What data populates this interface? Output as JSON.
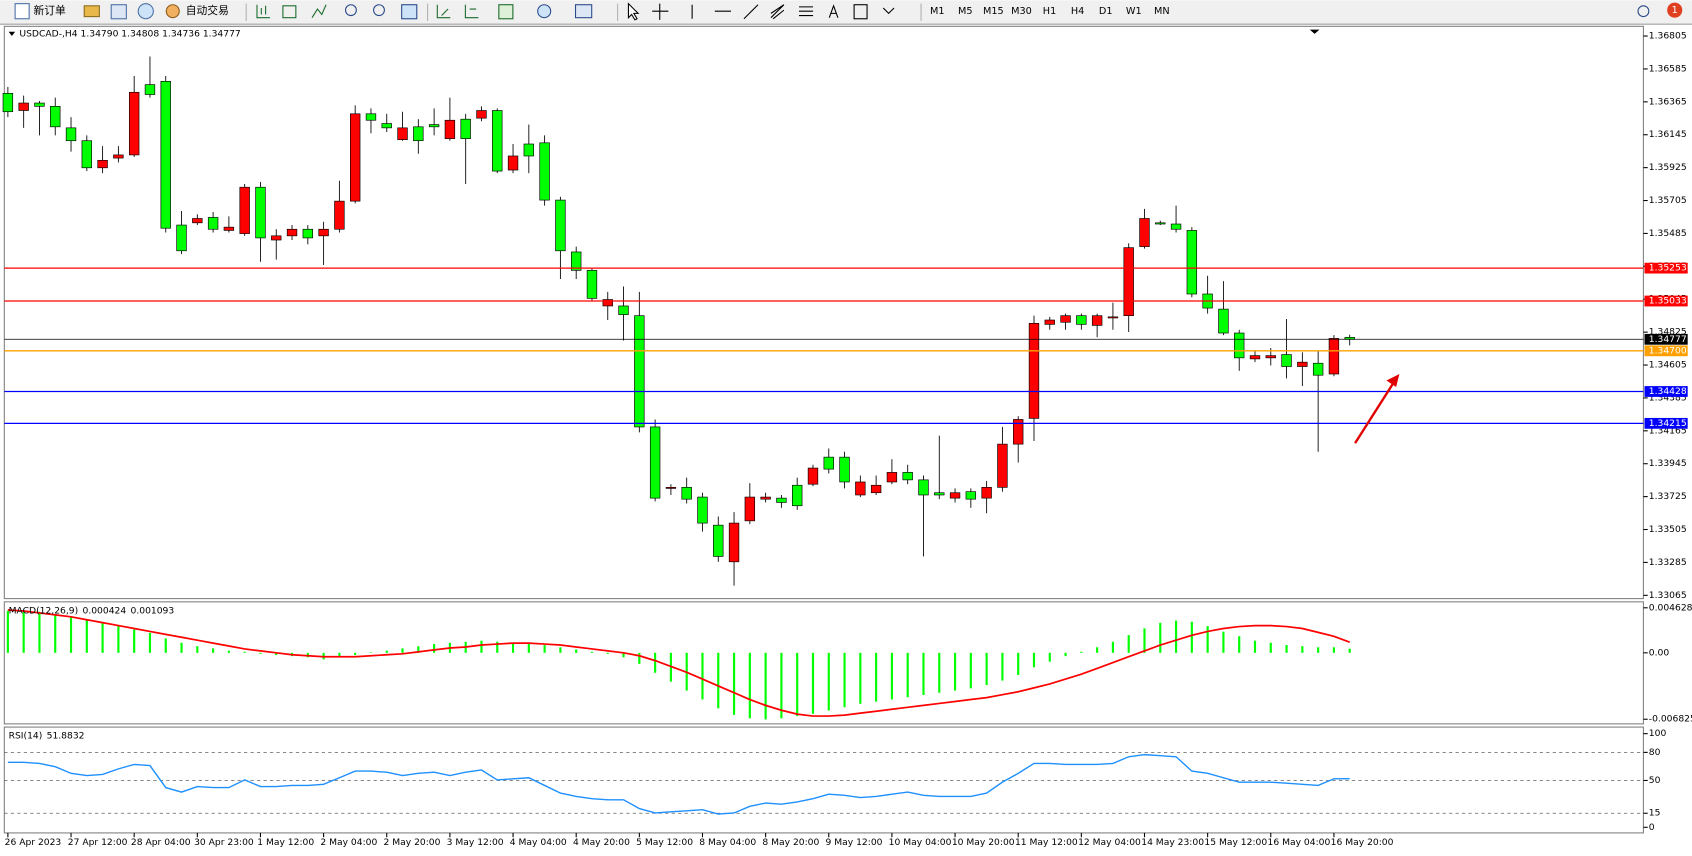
{
  "toolbar": {
    "new_order": "新订单",
    "auto_trade": "自动交易",
    "timeframes": [
      "M1",
      "M5",
      "M15",
      "M30",
      "H1",
      "H4",
      "D1",
      "W1",
      "MN"
    ],
    "notifications": "1"
  },
  "chart_data": [
    {
      "type": "candlestick",
      "subtitle": "USDCAD-,H4  1.34790 1.34808 1.34736 1.34777",
      "up_color": "#ff0000",
      "down_color": "#00ff00",
      "categories": [
        "26 Apr 2023",
        null,
        null,
        null,
        "27 Apr 12:00",
        null,
        null,
        null,
        "28 Apr 04:00",
        null,
        null,
        null,
        "30 Apr 23:00",
        null,
        null,
        null,
        "1 May 12:00",
        null,
        null,
        null,
        "2 May 04:00",
        null,
        null,
        null,
        "2 May 20:00",
        null,
        null,
        null,
        "3 May 12:00",
        null,
        null,
        null,
        "4 May 04:00",
        null,
        null,
        null,
        "4 May 20:00",
        null,
        null,
        null,
        "5 May 12:00",
        null,
        null,
        null,
        "8 May 04:00",
        null,
        null,
        null,
        "8 May 20:00",
        null,
        null,
        null,
        "9 May 12:00",
        null,
        null,
        null,
        "10 May 04:00",
        null,
        null,
        null,
        "10 May 20:00",
        null,
        null,
        null,
        "11 May 12:00",
        null,
        null,
        null,
        "12 May 04:00",
        null,
        null,
        null,
        "14 May 23:00",
        null,
        null,
        null,
        "15 May 12:00",
        null,
        null,
        null,
        "16 May 04:00",
        null,
        null,
        null,
        "16 May 20:00",
        null
      ],
      "ohlc": [
        [
          1.36422,
          1.36465,
          1.36263,
          1.36299
        ],
        [
          1.36307,
          1.36407,
          1.36191,
          1.36357
        ],
        [
          1.36357,
          1.36371,
          1.36141,
          1.36335
        ],
        [
          1.36335,
          1.36393,
          1.36141,
          1.36198
        ],
        [
          1.36191,
          1.36263,
          1.36032,
          1.36105
        ],
        [
          1.36105,
          1.36141,
          1.35902,
          1.35924
        ],
        [
          1.35924,
          1.36069,
          1.35888,
          1.35974
        ],
        [
          1.35989,
          1.36069,
          1.3596,
          1.3601
        ],
        [
          1.3601,
          1.36538,
          1.35996,
          1.36429
        ],
        [
          1.3648,
          1.36668,
          1.36393,
          1.36414
        ],
        [
          1.36502,
          1.36538,
          1.35491,
          1.3552
        ],
        [
          1.35541,
          1.35635,
          1.35347,
          1.35369
        ],
        [
          1.35556,
          1.35613,
          1.35541,
          1.35585
        ],
        [
          1.35592,
          1.35628,
          1.35491,
          1.35513
        ],
        [
          1.35505,
          1.35599,
          1.35491,
          1.35527
        ],
        [
          1.35484,
          1.35816,
          1.35469,
          1.35794
        ],
        [
          1.35794,
          1.3583,
          1.35296,
          1.35455
        ],
        [
          1.35441,
          1.35513,
          1.3531,
          1.35469
        ],
        [
          1.35469,
          1.35541,
          1.35441,
          1.35513
        ],
        [
          1.35513,
          1.35541,
          1.35412,
          1.35455
        ],
        [
          1.35469,
          1.35563,
          1.35274,
          1.35513
        ],
        [
          1.35513,
          1.35837,
          1.35491,
          1.35701
        ],
        [
          1.35701,
          1.36342,
          1.35686,
          1.36285
        ],
        [
          1.36285,
          1.36321,
          1.36155,
          1.36242
        ],
        [
          1.3622,
          1.36285,
          1.36163,
          1.36191
        ],
        [
          1.36112,
          1.36299,
          1.36105,
          1.36191
        ],
        [
          1.36198,
          1.36249,
          1.36018,
          1.36105
        ],
        [
          1.36213,
          1.36321,
          1.36141,
          1.36198
        ],
        [
          1.36119,
          1.36393,
          1.36105,
          1.36242
        ],
        [
          1.36249,
          1.36285,
          1.35816,
          1.36119
        ],
        [
          1.36256,
          1.36335,
          1.36235,
          1.36307
        ],
        [
          1.36307,
          1.36321,
          1.35888,
          1.35902
        ],
        [
          1.35909,
          1.36083,
          1.35888,
          1.36003
        ],
        [
          1.36083,
          1.36213,
          1.35888,
          1.36003
        ],
        [
          1.36091,
          1.36141,
          1.35671,
          1.35708
        ],
        [
          1.35708,
          1.3573,
          1.3518,
          1.35369
        ],
        [
          1.35361,
          1.35397,
          1.3518,
          1.35238
        ],
        [
          1.35238,
          1.35252,
          1.35036,
          1.35051
        ],
        [
          1.35,
          1.35094,
          1.34906,
          1.35043
        ],
        [
          1.35,
          1.3513,
          1.34769,
          1.34942
        ],
        [
          1.34935,
          1.35094,
          1.34155,
          1.34191
        ],
        [
          1.34191,
          1.34241,
          1.33693,
          1.33715
        ],
        [
          1.3378,
          1.33808,
          1.33736,
          1.33787
        ],
        [
          1.33787,
          1.33852,
          1.33679,
          1.33708
        ],
        [
          1.33722,
          1.33751,
          1.33491,
          1.33548
        ],
        [
          1.33534,
          1.33592,
          1.33289,
          1.33325
        ],
        [
          1.33289,
          1.33621,
          1.3313,
          1.33548
        ],
        [
          1.33563,
          1.33815,
          1.33541,
          1.33722
        ],
        [
          1.33708,
          1.33751,
          1.33686,
          1.33722
        ],
        [
          1.33715,
          1.33736,
          1.3365,
          1.33686
        ],
        [
          1.33801,
          1.33852,
          1.33636,
          1.33664
        ],
        [
          1.33808,
          1.33938,
          1.33794,
          1.33916
        ],
        [
          1.33989,
          1.34047,
          1.3388,
          1.33909
        ],
        [
          1.33989,
          1.34025,
          1.3378,
          1.33823
        ],
        [
          1.33736,
          1.33866,
          1.33722,
          1.33823
        ],
        [
          1.33751,
          1.33866,
          1.33736,
          1.33801
        ],
        [
          1.33823,
          1.33975,
          1.33808,
          1.33887
        ],
        [
          1.33887,
          1.33938,
          1.33808,
          1.33837
        ],
        [
          1.33837,
          1.33866,
          1.33325,
          1.33736
        ],
        [
          1.33751,
          1.34133,
          1.33708,
          1.33736
        ],
        [
          1.33715,
          1.3378,
          1.33686,
          1.33751
        ],
        [
          1.33758,
          1.3378,
          1.3365,
          1.33708
        ],
        [
          1.33715,
          1.3383,
          1.33614,
          1.33787
        ],
        [
          1.33787,
          1.34191,
          1.33758,
          1.34076
        ],
        [
          1.34076,
          1.34263,
          1.33953,
          1.34241
        ],
        [
          1.34248,
          1.34935,
          1.34097,
          1.34884
        ],
        [
          1.34877,
          1.34927,
          1.34841,
          1.34906
        ],
        [
          1.34891,
          1.34949,
          1.34841,
          1.34935
        ],
        [
          1.34935,
          1.34949,
          1.34841,
          1.34877
        ],
        [
          1.3487,
          1.34949,
          1.34791,
          1.34935
        ],
        [
          1.3492,
          1.35022,
          1.34841,
          1.34927
        ],
        [
          1.34935,
          1.35419,
          1.34826,
          1.3539
        ],
        [
          1.35397,
          1.35649,
          1.35383,
          1.35585
        ],
        [
          1.35556,
          1.3557,
          1.35541,
          1.35548
        ],
        [
          1.35548,
          1.35671,
          1.35491,
          1.35513
        ],
        [
          1.35505,
          1.35527,
          1.35058,
          1.3508
        ],
        [
          1.3508,
          1.35202,
          1.34949,
          1.34986
        ],
        [
          1.34979,
          1.35166,
          1.34805,
          1.34819
        ],
        [
          1.34819,
          1.34841,
          1.34566,
          1.34653
        ],
        [
          1.34646,
          1.34704,
          1.34624,
          1.34668
        ],
        [
          1.34653,
          1.34719,
          1.34602,
          1.34668
        ],
        [
          1.34675,
          1.34913,
          1.34516,
          1.34595
        ],
        [
          1.34595,
          1.3469,
          1.34465,
          1.34624
        ],
        [
          1.34617,
          1.34697,
          1.34025,
          1.34537
        ],
        [
          1.34545,
          1.34805,
          1.3453,
          1.34783
        ],
        [
          1.3479,
          1.34808,
          1.34736,
          1.34777
        ]
      ],
      "ylim": [
        1.33043,
        1.3687
      ],
      "yticks": [
        1.36805,
        1.36585,
        1.36365,
        1.36145,
        1.35925,
        1.35705,
        1.35485,
        1.35265,
        1.35045,
        1.34825,
        1.34605,
        1.34385,
        1.34165,
        1.33945,
        1.33725,
        1.33505,
        1.33285,
        1.33065
      ],
      "levels": [
        {
          "value": 1.35253,
          "label": "1.35253",
          "color": "#ff0000"
        },
        {
          "value": 1.35033,
          "label": "1.35033",
          "color": "#ff0000"
        },
        {
          "value": 1.347,
          "label": "1.34700",
          "color": "#ffa000"
        },
        {
          "value": 1.34428,
          "label": "1.34428",
          "color": "#0000ff"
        },
        {
          "value": 1.34215,
          "label": "1.34215",
          "color": "#0000ff"
        }
      ]
    },
    {
      "type": "macd",
      "title": "MACD(12,26,9)",
      "series": [
        {
          "color": "#00ff00",
          "values": [
            0.00433,
            0.00433,
            0.00422,
            0.00399,
            0.00376,
            0.00342,
            0.00308,
            0.00274,
            0.00239,
            0.00205,
            0.00148,
            0.00103,
            0.00068,
            0.00046,
            0.00023,
            0.00011,
            -0.00011,
            -0.00023,
            -0.00034,
            -0.00046,
            -0.00068,
            -0.00046,
            -0.00023,
            5e-05,
            0.00023,
            0.00046,
            0.00068,
            0.00091,
            0.00103,
            0.00114,
            0.00125,
            0.00114,
            0.00103,
            0.00091,
            0.0008,
            0.00057,
            0.00034,
            0.00011,
            -0.00011,
            -0.00046,
            -0.00114,
            -0.00205,
            -0.00296,
            -0.00388,
            -0.00479,
            -0.0057,
            -0.00638,
            -0.00673,
            -0.00684,
            -0.00673,
            -0.0065,
            -0.00627,
            -0.00593,
            -0.00559,
            -0.00524,
            -0.00502,
            -0.00479,
            -0.00456,
            -0.00433,
            -0.0041,
            -0.00388,
            -0.00365,
            -0.00331,
            -0.00285,
            -0.00228,
            -0.00148,
            -0.00091,
            -0.00034,
            0.00011,
            0.00057,
            0.00114,
            0.00182,
            0.00251,
            0.00308,
            0.00331,
            0.00319,
            0.00274,
            0.00217,
            0.00171,
            0.00125,
            0.00103,
            0.0008,
            0.00068,
            0.00057,
            0.00057,
            0.000424
          ]
        },
        {
          "color": "#ff0000",
          "values": [
            0.0044,
            0.0043,
            0.0041,
            0.0039,
            0.0037,
            0.0034,
            0.0031,
            0.0028,
            0.0025,
            0.0022,
            0.0019,
            0.0016,
            0.0013,
            0.001,
            0.0007,
            0.0004,
            0.0002,
            0,
            -0.0002,
            -0.0003,
            -0.0004,
            -0.0004,
            -0.0004,
            -0.0003,
            -0.0002,
            -0.0001,
            0.0001,
            0.0003,
            0.0005,
            0.0006,
            0.0008,
            0.0009,
            0.001,
            0.001,
            0.0009,
            0.0008,
            0.0006,
            0.0004,
            0.0002,
            0,
            -0.0003,
            -0.0008,
            -0.0014,
            -0.002,
            -0.0027,
            -0.0034,
            -0.0041,
            -0.0048,
            -0.0054,
            -0.0059,
            -0.0063,
            -0.0065,
            -0.0065,
            -0.0064,
            -0.0062,
            -0.006,
            -0.0058,
            -0.0056,
            -0.0054,
            -0.0052,
            -0.005,
            -0.0048,
            -0.0046,
            -0.0043,
            -0.004,
            -0.0036,
            -0.0032,
            -0.0027,
            -0.0022,
            -0.0016,
            -0.001,
            -0.0004,
            0.0002,
            0.0008,
            0.0013,
            0.0018,
            0.0022,
            0.0025,
            0.0027,
            0.0028,
            0.0028,
            0.0027,
            0.0025,
            0.0021,
            0.0017,
            0.001093
          ]
        }
      ],
      "ylim": [
        -0.0073,
        0.00524
      ],
      "yticks": [
        0.004628,
        {
          "value": 0,
          "label": "0.00"
        },
        -0.006825
      ]
    },
    {
      "type": "line",
      "title": "RSI(14)",
      "series": [
        {
          "color": "#1e90ff",
          "values": [
            69.4,
            69.4,
            68.2,
            64.7,
            57.6,
            55.3,
            56.5,
            62.4,
            67.1,
            65.9,
            42.4,
            37.6,
            43.5,
            42.4,
            42.4,
            50.6,
            43.5,
            43.5,
            44.7,
            44.7,
            45.9,
            52.9,
            60,
            60,
            58.8,
            55.3,
            57.6,
            58.8,
            55.3,
            58.8,
            61.2,
            50.6,
            51.8,
            52.9,
            44.7,
            36.5,
            32.9,
            30.6,
            29.4,
            29.4,
            20,
            15.3,
            16.5,
            17.6,
            18.8,
            14.1,
            15.3,
            22.4,
            25.9,
            24.7,
            27.1,
            30.6,
            35.3,
            34.1,
            31.8,
            32.9,
            35.3,
            37.6,
            34.1,
            32.9,
            32.9,
            32.9,
            36.5,
            48.2,
            57.6,
            68.2,
            68.2,
            67.1,
            67.1,
            67.1,
            68.2,
            75.3,
            77.6,
            76.5,
            75.3,
            60,
            57.6,
            52.9,
            48.2,
            48.2,
            48.2,
            47.1,
            45.9,
            44.7,
            51.8,
            51.8832
          ]
        }
      ],
      "ylim": [
        -6,
        107
      ],
      "yticks": [
        100,
        80,
        50,
        15,
        0
      ],
      "levels": [
        80,
        50,
        15
      ]
    }
  ]
}
